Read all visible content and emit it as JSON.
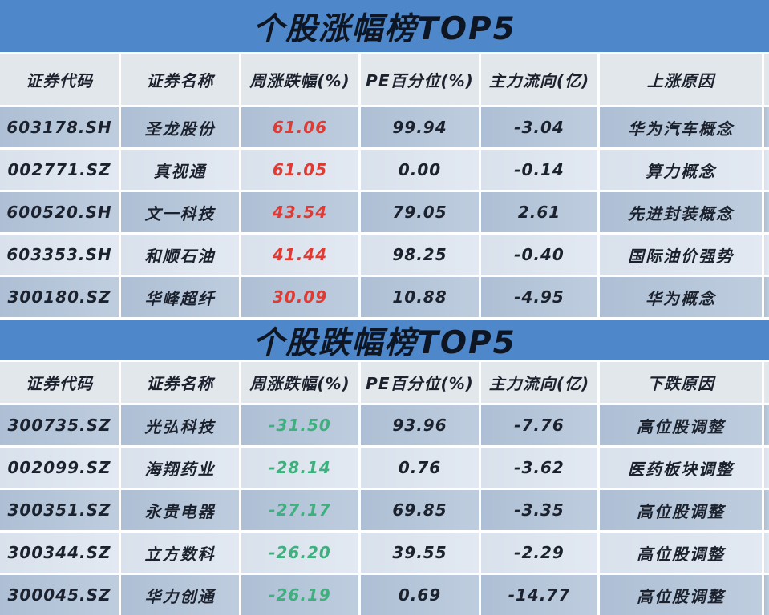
{
  "colors": {
    "band_blue": "#4E87CA",
    "header_row_bg": "#E2E7EB",
    "row_dark_bg": "#B4C4D8",
    "row_light_bg": "#DEE5EF",
    "text_dark": "#1B222E",
    "gain_red": "#E13A32",
    "loss_green": "#3EB07D"
  },
  "chart_data": [
    {
      "type": "table",
      "title": "个股涨幅榜TOP5",
      "columns": [
        "证券代码",
        "证券名称",
        "周涨跌幅(%)",
        "PE百分位(%)",
        "主力流向(亿)",
        "上涨原因"
      ],
      "rows": [
        [
          "603178.SH",
          "圣龙股份",
          "61.06",
          "99.94",
          "-3.04",
          "华为汽车概念"
        ],
        [
          "002771.SZ",
          "真视通",
          "61.05",
          "0.00",
          "-0.14",
          "算力概念"
        ],
        [
          "600520.SH",
          "文一科技",
          "43.54",
          "79.05",
          "2.61",
          "先进封装概念"
        ],
        [
          "603353.SH",
          "和顺石油",
          "41.44",
          "98.25",
          "-0.40",
          "国际油价强势"
        ],
        [
          "300180.SZ",
          "华峰超纤",
          "30.09",
          "10.88",
          "-4.95",
          "华为概念"
        ]
      ],
      "change_color": "red"
    },
    {
      "type": "table",
      "title": "个股跌幅榜TOP5",
      "columns": [
        "证券代码",
        "证券名称",
        "周涨跌幅(%)",
        "PE百分位(%)",
        "主力流向(亿)",
        "下跌原因"
      ],
      "rows": [
        [
          "300735.SZ",
          "光弘科技",
          "-31.50",
          "93.96",
          "-7.76",
          "高位股调整"
        ],
        [
          "002099.SZ",
          "海翔药业",
          "-28.14",
          "0.76",
          "-3.62",
          "医药板块调整"
        ],
        [
          "300351.SZ",
          "永贵电器",
          "-27.17",
          "69.85",
          "-3.35",
          "高位股调整"
        ],
        [
          "300344.SZ",
          "立方数科",
          "-26.20",
          "39.55",
          "-2.29",
          "高位股调整"
        ],
        [
          "300045.SZ",
          "华力创通",
          "-26.19",
          "0.69",
          "-14.77",
          "高位股调整"
        ]
      ],
      "change_color": "green"
    }
  ]
}
